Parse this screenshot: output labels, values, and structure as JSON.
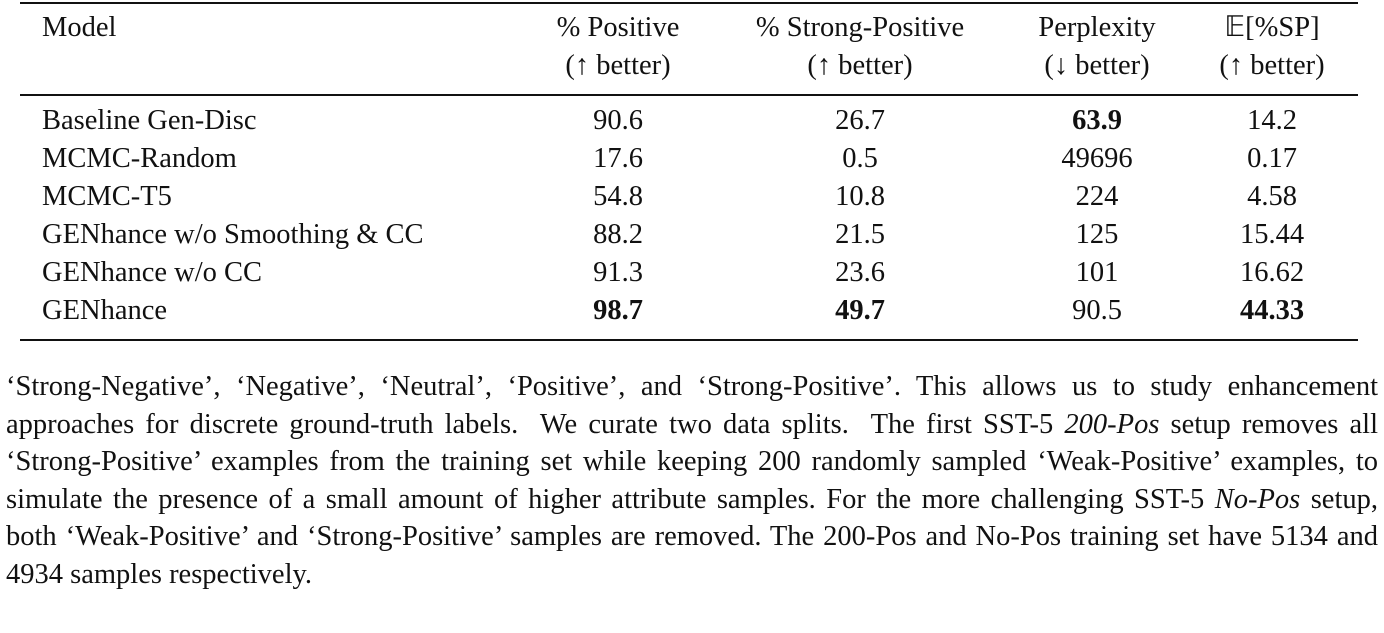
{
  "table": {
    "header": [
      [
        "Model"
      ],
      [
        "% Positive",
        "(↑ better)"
      ],
      [
        "% Strong-Positive",
        "(↑ better)"
      ],
      [
        "Perplexity",
        "(↓ better)"
      ],
      [
        "𝔼[%SP]",
        "(↑ better)"
      ]
    ],
    "rows": [
      [
        "Baseline Gen-Disc",
        "90.6",
        "26.7",
        "63.9",
        "14.2"
      ],
      [
        "MCMC-Random",
        "17.6",
        "0.5",
        "49696",
        "0.17"
      ],
      [
        "MCMC-T5",
        "54.8",
        "10.8",
        "224",
        "4.58"
      ],
      [
        "GENhance w/o Smoothing & CC",
        "88.2",
        "21.5",
        "125",
        "15.44"
      ],
      [
        "GENhance w/o CC",
        "91.3",
        "23.6",
        "101",
        "16.62"
      ],
      [
        "GENhance",
        "98.7",
        "49.7",
        "90.5",
        "44.33"
      ]
    ],
    "bold": [
      [
        0,
        3
      ],
      [
        5,
        1
      ],
      [
        5,
        2
      ],
      [
        5,
        4
      ]
    ]
  },
  "paragraph": [
    {
      "text": "‘Strong-Negative’, ‘Negative’, ‘Neutral’, ‘Positive’, and ‘Strong-Positive’. This allows us to study enhancement approaches for discrete ground-truth labels.  We curate two data splits.  The first SST-5 ",
      "italic": false
    },
    {
      "text": "200-Pos",
      "italic": true
    },
    {
      "text": " setup removes all ‘Strong-Positive’ examples from the training set while keeping 200 randomly sampled ‘Weak-Positive’ examples, to simulate the presence of a small amount of higher attribute samples. For the more challenging SST-5 ",
      "italic": false
    },
    {
      "text": "No-Pos",
      "italic": true
    },
    {
      "text": " setup, both ‘Weak-Positive’ and ‘Strong-Positive’ samples are removed. The 200-Pos and No-Pos training set have 5134 and 4934 samples respectively.",
      "italic": false
    }
  ]
}
